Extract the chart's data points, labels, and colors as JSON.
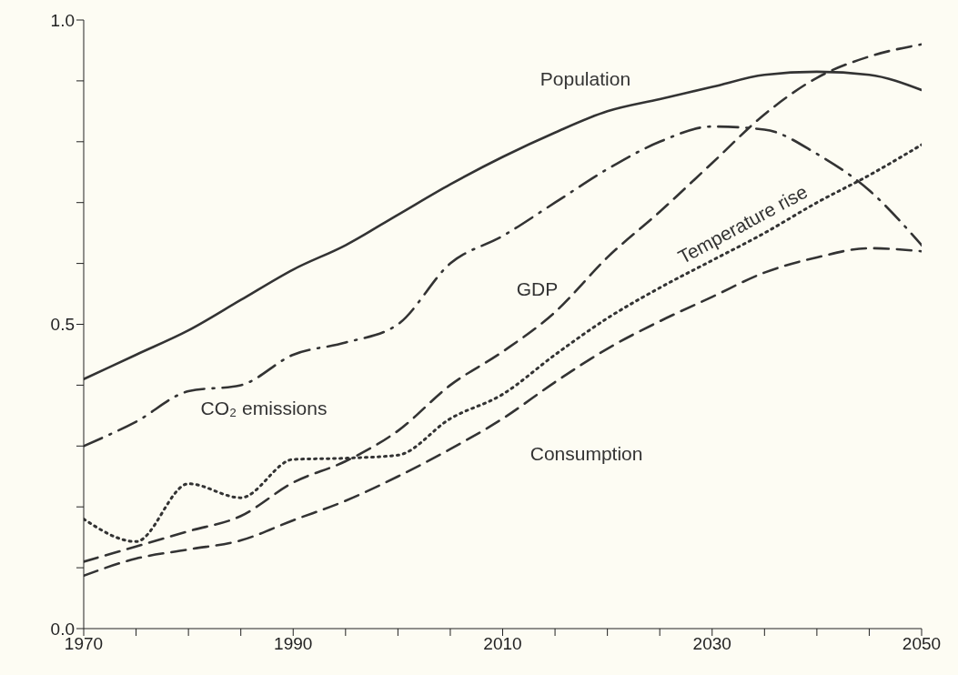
{
  "chart_data": {
    "type": "line",
    "x": [
      1970,
      1975,
      1980,
      1985,
      1990,
      1995,
      2000,
      2005,
      2010,
      2015,
      2020,
      2025,
      2030,
      2035,
      2040,
      2045,
      2050
    ],
    "series": [
      {
        "name": "Population",
        "color": "#333333",
        "line_style": "solid",
        "values": [
          0.41,
          0.45,
          0.49,
          0.54,
          0.59,
          0.63,
          0.68,
          0.73,
          0.775,
          0.815,
          0.85,
          0.87,
          0.89,
          0.91,
          0.915,
          0.91,
          0.885
        ]
      },
      {
        "name": "CO₂ emissions",
        "color": "#333333",
        "line_style": "dashdot",
        "values": [
          0.3,
          0.34,
          0.39,
          0.4,
          0.45,
          0.47,
          0.5,
          0.6,
          0.645,
          0.7,
          0.755,
          0.8,
          0.825,
          0.82,
          0.78,
          0.72,
          0.63
        ]
      },
      {
        "name": "GDP",
        "color": "#333333",
        "line_style": "dashed",
        "values": [
          0.11,
          0.135,
          0.16,
          0.185,
          0.24,
          0.275,
          0.325,
          0.4,
          0.455,
          0.52,
          0.61,
          0.685,
          0.765,
          0.845,
          0.905,
          0.94,
          0.96
        ]
      },
      {
        "name": "Temperature rise",
        "color": "#333333",
        "line_style": "dotted",
        "values": [
          0.18,
          0.143,
          0.238,
          0.215,
          0.278,
          0.28,
          0.285,
          0.345,
          0.385,
          0.45,
          0.51,
          0.56,
          0.605,
          0.65,
          0.7,
          0.745,
          0.795
        ]
      },
      {
        "name": "Consumption",
        "color": "#333333",
        "line_style": "dashed",
        "values": [
          0.087,
          0.115,
          0.13,
          0.145,
          0.178,
          0.21,
          0.25,
          0.295,
          0.345,
          0.405,
          0.46,
          0.505,
          0.545,
          0.585,
          0.61,
          0.625,
          0.62
        ]
      }
    ],
    "xlim": [
      1970,
      2050
    ],
    "xticks": [
      1970,
      {
        "value": 1975,
        "label": null
      },
      {
        "value": 1980,
        "label": null
      },
      {
        "value": 1985,
        "label": null
      },
      1990,
      {
        "value": 1995,
        "label": null
      },
      {
        "value": 2000,
        "label": null
      },
      {
        "value": 2005,
        "label": null
      },
      2010,
      {
        "value": 2015,
        "label": null
      },
      {
        "value": 2020,
        "label": null
      },
      {
        "value": 2025,
        "label": null
      },
      2030,
      {
        "value": 2035,
        "label": null
      },
      {
        "value": 2040,
        "label": null
      },
      {
        "value": 2045,
        "label": null
      },
      2050
    ],
    "ylim": [
      0,
      1
    ],
    "yticks": [
      {
        "value": 0,
        "label": "0.0"
      },
      {
        "value": 0.1,
        "label": null
      },
      {
        "value": 0.2,
        "label": null
      },
      {
        "value": 0.3,
        "label": null
      },
      {
        "value": 0.4,
        "label": null
      },
      {
        "value": 0.5,
        "label": "0.5"
      },
      {
        "value": 0.6,
        "label": null
      },
      {
        "value": 0.7,
        "label": null
      },
      {
        "value": 0.8,
        "label": null
      },
      {
        "value": 0.9,
        "label": null
      },
      {
        "value": 1,
        "label": "1.0"
      }
    ],
    "grid": false,
    "legend": false,
    "marker": "none"
  }
}
